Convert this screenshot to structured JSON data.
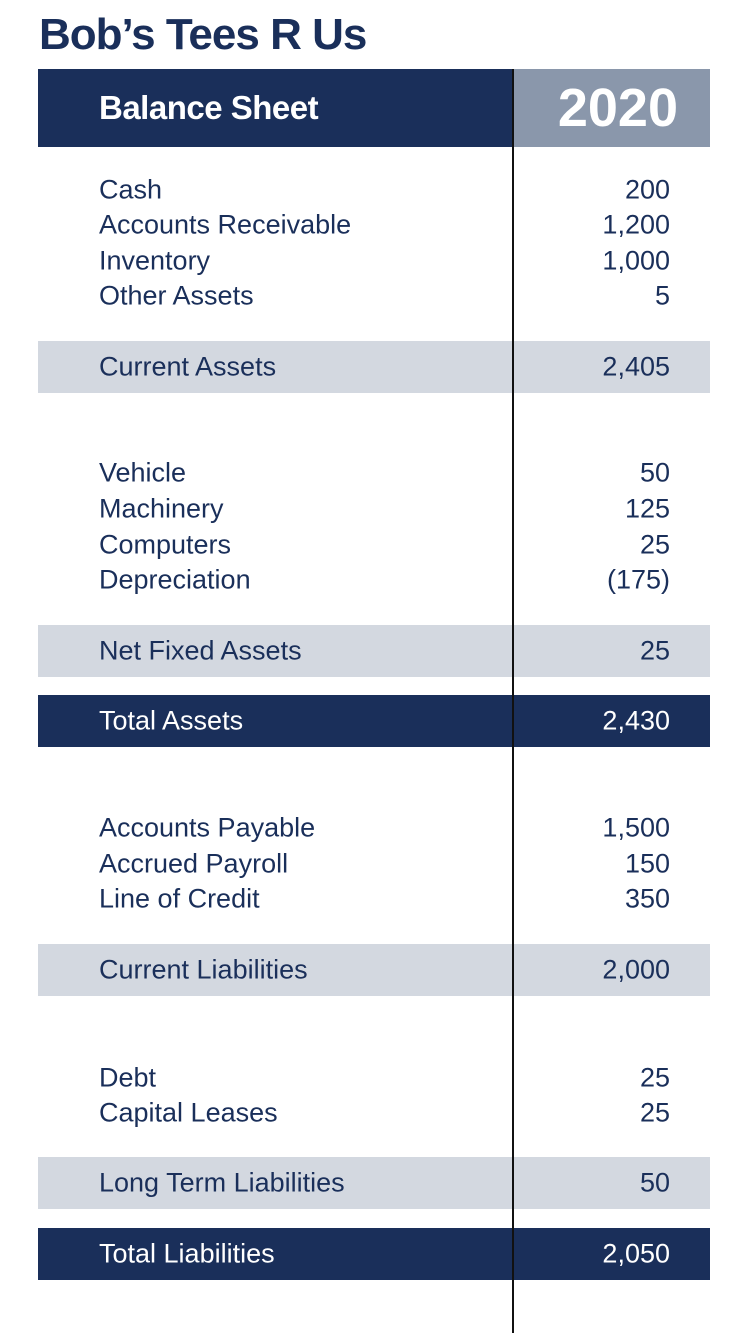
{
  "company": "Bob’s Tees R Us",
  "header": {
    "title": "Balance Sheet",
    "year": "2020"
  },
  "colors": {
    "navy": "#1a2f5a",
    "header_grey": "#8a97ab",
    "band": "#d3d8e0"
  },
  "rows": [
    {
      "label": "Cash",
      "value": "200",
      "style": "item"
    },
    {
      "label": "Accounts Receivable",
      "value": "1,200",
      "style": "item"
    },
    {
      "label": "Inventory",
      "value": "1,000",
      "style": "item"
    },
    {
      "label": "Other Assets",
      "value": "5",
      "style": "item"
    },
    {
      "label": "Current Assets",
      "value": "2,405",
      "style": "subtotal"
    },
    {
      "label": "Vehicle",
      "value": "50",
      "style": "item"
    },
    {
      "label": "Machinery",
      "value": "125",
      "style": "item"
    },
    {
      "label": "Computers",
      "value": "25",
      "style": "item"
    },
    {
      "label": "Depreciation",
      "value": "(175)",
      "style": "item"
    },
    {
      "label": "Net Fixed Assets",
      "value": "25",
      "style": "subtotal"
    },
    {
      "label": "Total Assets",
      "value": "2,430",
      "style": "total"
    },
    {
      "label": "Accounts Payable",
      "value": "1,500",
      "style": "item"
    },
    {
      "label": "Accrued Payroll",
      "value": "150",
      "style": "item"
    },
    {
      "label": "Line of Credit",
      "value": "350",
      "style": "item"
    },
    {
      "label": "Current Liabilities",
      "value": "2,000",
      "style": "subtotal"
    },
    {
      "label": "Debt",
      "value": "25",
      "style": "item"
    },
    {
      "label": "Capital Leases",
      "value": "25",
      "style": "item"
    },
    {
      "label": "Long Term Liabilities",
      "value": "50",
      "style": "subtotal"
    },
    {
      "label": "Total Liabilities",
      "value": "2,050",
      "style": "total"
    }
  ]
}
